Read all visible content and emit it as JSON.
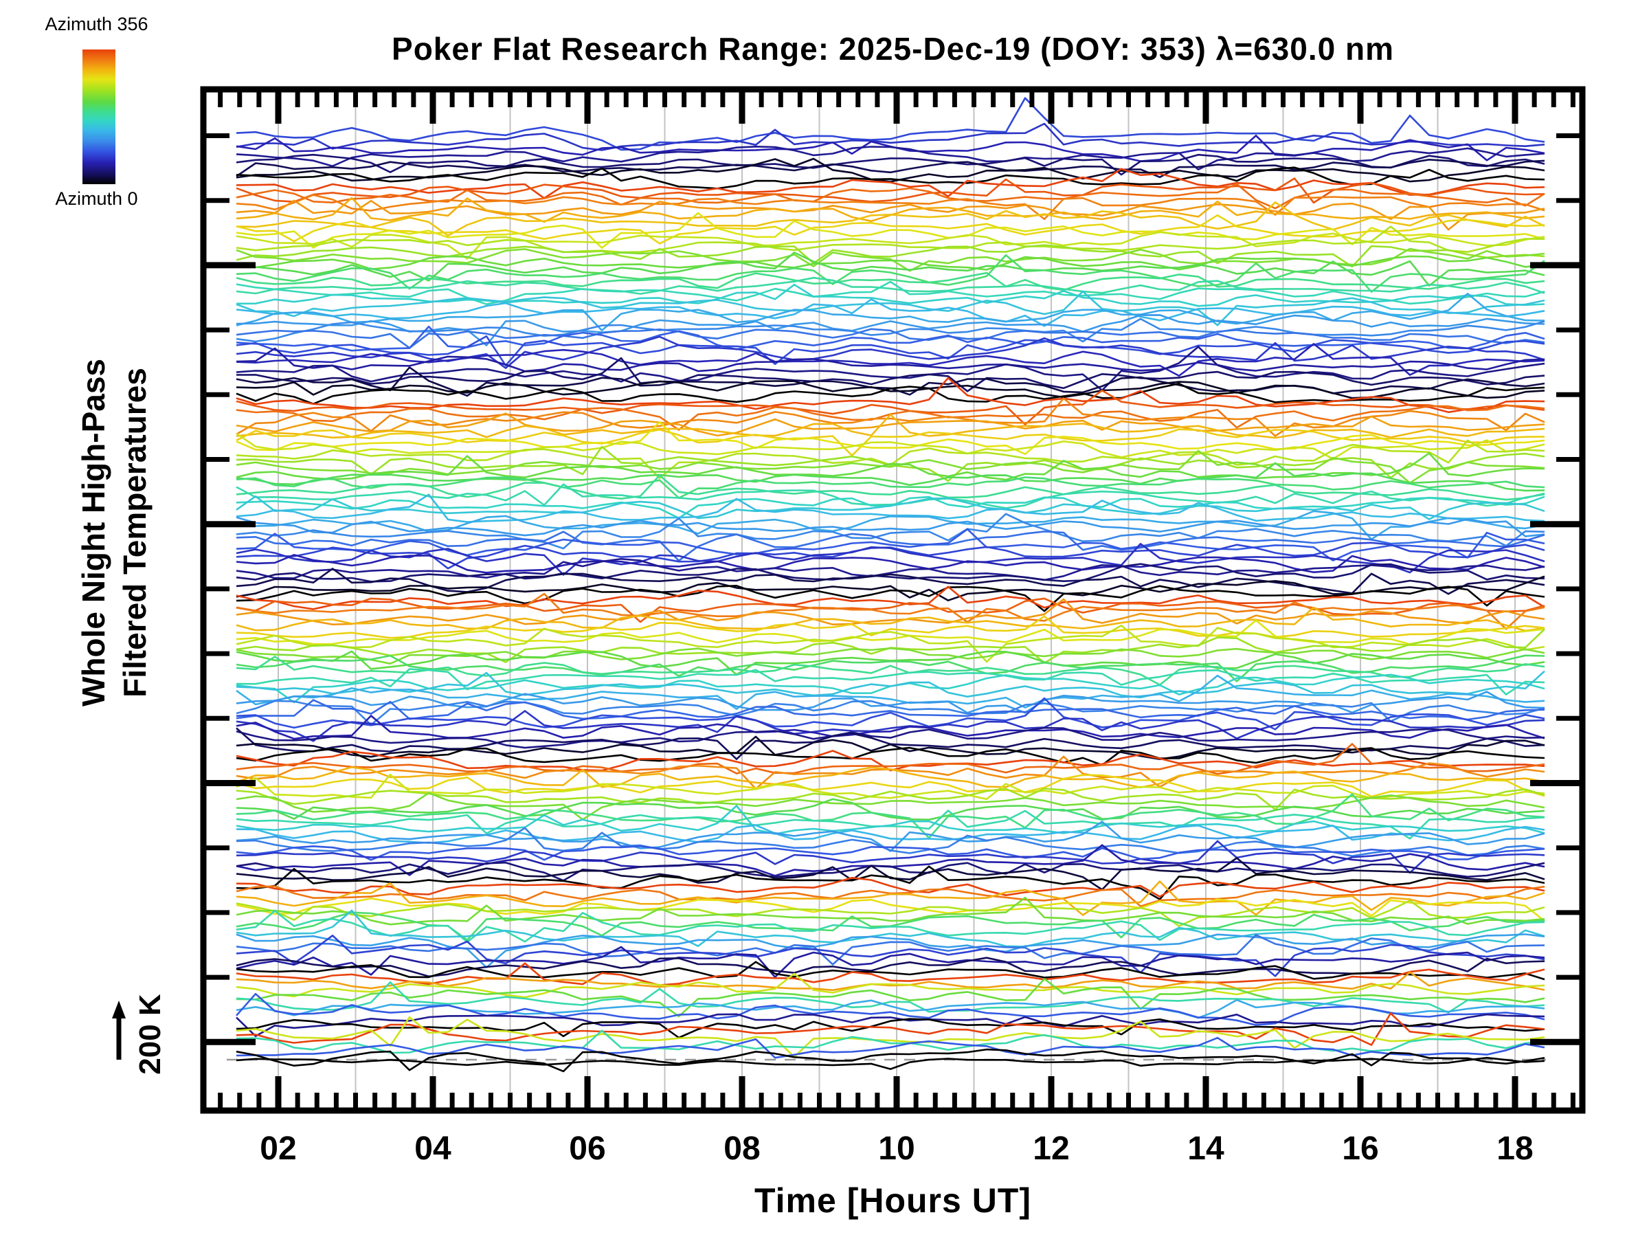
{
  "title": "Poker Flat Research Range: 2025-Dec-19 (DOY: 353) λ=630.0 nm",
  "colorbar": {
    "top_label": "Azimuth 356",
    "bottom_label": "Azimuth 0"
  },
  "y_axis": {
    "label_line1": "Whole Night High-Pass",
    "label_line2": "Filtered Temperatures"
  },
  "scale_bar": {
    "label": "200 K",
    "arrow_direction": "up"
  },
  "x_axis": {
    "title": "Time [Hours UT]",
    "tick_labels": [
      "02",
      "04",
      "06",
      "08",
      "10",
      "12",
      "14",
      "16",
      "18"
    ],
    "major_tick_hours": [
      2,
      4,
      6,
      8,
      10,
      12,
      14,
      16,
      18
    ],
    "minor_tick_interval_hours": 0.25,
    "gridline_hours": [
      2,
      3,
      4,
      5,
      6,
      7,
      8,
      9,
      10,
      11,
      12,
      13,
      14,
      15,
      16,
      17,
      18
    ]
  },
  "chart_data": {
    "type": "line",
    "title": "Poker Flat Research Range: 2025-Dec-19 (DOY: 353) λ=630.0 nm",
    "xlabel": "Time [Hours UT]",
    "ylabel": "Whole Night High-Pass Filtered Temperatures",
    "site": "Poker Flat Research Range",
    "date": "2025-Dec-19",
    "day_of_year": 353,
    "wavelength_nm": 630.0,
    "x_axis_range_hours_ut": [
      1.0,
      18.9
    ],
    "data_start_hour_ut": 1.45,
    "data_end_hour_ut": 18.4,
    "sample_interval_hours": 0.25,
    "points_per_trace": 69,
    "temperature_scale_bar_kelvin": 200,
    "grid": "faint vertical gridlines at every hour",
    "legend_position": "azimuth colorbar at top-left",
    "colormap": {
      "quantity": "azimuth_degrees",
      "min": 0,
      "max": 356,
      "order": "black(0) → navy → blue → cyan → green → yellow → orange → red(356)",
      "stops": [
        {
          "t": 0.0,
          "color": "#000000"
        },
        {
          "t": 0.07,
          "color": "#140e5a"
        },
        {
          "t": 0.16,
          "color": "#2720b2"
        },
        {
          "t": 0.24,
          "color": "#3353e2"
        },
        {
          "t": 0.32,
          "color": "#3a8ce9"
        },
        {
          "t": 0.4,
          "color": "#38b8e8"
        },
        {
          "t": 0.47,
          "color": "#33d6c5"
        },
        {
          "t": 0.54,
          "color": "#3fdd8d"
        },
        {
          "t": 0.61,
          "color": "#5cda45"
        },
        {
          "t": 0.7,
          "color": "#a4e320"
        },
        {
          "t": 0.78,
          "color": "#e6e414"
        },
        {
          "t": 0.85,
          "color": "#f2b40f"
        },
        {
          "t": 0.92,
          "color": "#f07d12"
        },
        {
          "t": 1.0,
          "color": "#e8410c"
        }
      ]
    },
    "trace_stack": [
      {
        "n_traces": 8,
        "azimuth_from": 80,
        "azimuth_to": 0
      },
      {
        "n_traces": 36,
        "azimuth_from": 356,
        "azimuth_to": 0
      },
      {
        "n_traces": 33,
        "azimuth_from": 356,
        "azimuth_to": 0
      },
      {
        "n_traces": 27,
        "azimuth_from": 356,
        "azimuth_to": 0
      },
      {
        "n_traces": 21,
        "azimuth_from": 356,
        "azimuth_to": 0
      },
      {
        "n_traces": 15,
        "azimuth_from": 356,
        "azimuth_to": 0
      },
      {
        "n_traces": 9,
        "azimuth_from": 356,
        "azimuth_to": 0
      },
      {
        "n_traces": 5,
        "azimuth_from": 356,
        "azimuth_to": 0
      },
      {
        "n_traces": 1,
        "azimuth_from": 0,
        "azimuth_to": 0,
        "note": "bottom zenith-reference trace on dashed zero baseline"
      }
    ],
    "description": "155 whole-night high-pass filtered temperature residual traces (one per look direction), vertically offset and colored by azimuth; each trace oscillates about its own zero baseline with ~±20 px excursions at 15-minute cadence; a dashed gray line marks the zero baseline of the bottom trace; vertical 200 K scale-bar arrow at lower left."
  },
  "style": {
    "accent_black": "#000000",
    "gridline_color": "#c3c3c3",
    "dashed_line_color": "#999999",
    "background": "#ffffff"
  }
}
